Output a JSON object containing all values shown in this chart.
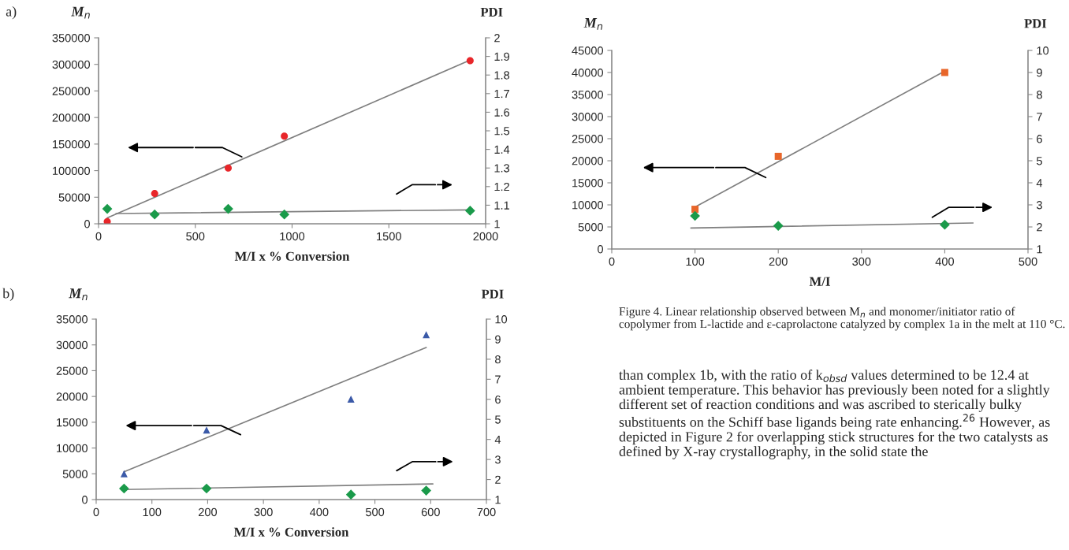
{
  "chart_data": [
    {
      "type": "scatter",
      "annotations": [
        "a)"
      ],
      "xlabel": "M/I x % Conversion",
      "ylabel": "M$_{n}$",
      "y2label": "PDI",
      "xlim": [
        0,
        2000
      ],
      "xticks": [
        0,
        500,
        1000,
        1500,
        2000
      ],
      "ylim": [
        0,
        350000
      ],
      "yticks": [
        0,
        50000,
        100000,
        150000,
        200000,
        250000,
        300000,
        350000
      ],
      "y2lim": [
        1,
        2
      ],
      "y2ticks": [
        1,
        {
          "value": 1.1,
          "label": "1.1"
        },
        {
          "value": 1.2,
          "label": "1.2"
        },
        {
          "value": 1.3,
          "label": "1.3"
        },
        {
          "value": 1.4,
          "label": "1.4"
        },
        {
          "value": 1.5,
          "label": "1.5"
        },
        {
          "value": 1.6,
          "label": "1.6"
        },
        {
          "value": 1.7,
          "label": "1.7"
        },
        {
          "value": 1.8,
          "label": "1.8"
        },
        {
          "value": 1.9,
          "label": "1.9"
        },
        2
      ],
      "grid": false,
      "series": [
        {
          "type": "scatter",
          "marker": "circle",
          "color": "#e8262a",
          "x": [
            45,
            290,
            670,
            960,
            1920
          ],
          "values": [
            4000,
            57000,
            105000,
            165000,
            307000
          ]
        },
        {
          "type": "scatter",
          "marker": "diamond",
          "axis": "y2",
          "color": "#1a9a4a",
          "x": [
            45,
            290,
            670,
            960,
            1920
          ],
          "values": [
            1.08,
            1.05,
            1.08,
            1.05,
            1.07
          ]
        },
        {
          "type": "line",
          "color": "#7f7f7f",
          "x": [
            45,
            1920
          ],
          "values": [
            11000,
            308000
          ]
        },
        {
          "type": "line",
          "axis": "y2",
          "color": "#7f7f7f",
          "x": [
            90,
            1920
          ],
          "values": [
            1.055,
            1.075
          ]
        }
      ]
    },
    {
      "type": "scatter",
      "annotations": [
        "b)"
      ],
      "xlabel": "M/I x % Conversion",
      "ylabel": "M$_{n}$",
      "y2label": "PDI",
      "xlim": [
        0,
        700
      ],
      "xticks": [
        0,
        100,
        200,
        300,
        400,
        500,
        600,
        700
      ],
      "ylim": [
        0,
        35000
      ],
      "yticks": [
        0,
        5000,
        10000,
        15000,
        20000,
        25000,
        30000,
        35000
      ],
      "y2lim": [
        1,
        10
      ],
      "y2ticks": [
        1,
        2,
        3,
        4,
        5,
        6,
        7,
        8,
        9,
        10
      ],
      "grid": false,
      "series": [
        {
          "type": "scatter",
          "marker": "triangle",
          "color": "#3b5aa8",
          "x": [
            50,
            198,
            457,
            592
          ],
          "values": [
            5000,
            13500,
            19500,
            32000
          ]
        },
        {
          "type": "scatter",
          "marker": "diamond",
          "axis": "y2",
          "color": "#1a9a4a",
          "x": [
            50,
            198,
            457,
            592
          ],
          "values": [
            1.55,
            1.55,
            1.25,
            1.45
          ]
        },
        {
          "type": "line",
          "color": "#7f7f7f",
          "x": [
            50,
            592
          ],
          "values": [
            5400,
            29500
          ]
        },
        {
          "type": "line",
          "axis": "y2",
          "color": "#7f7f7f",
          "x": [
            50,
            604
          ],
          "values": [
            1.5,
            1.78
          ]
        }
      ]
    },
    {
      "type": "scatter",
      "xlabel": "M/I",
      "ylabel": "M$_{n}$",
      "y2label": "PDI",
      "xlim": [
        0,
        500
      ],
      "xticks": [
        0,
        100,
        200,
        300,
        400,
        500
      ],
      "ylim": [
        0,
        45000
      ],
      "yticks": [
        0,
        5000,
        10000,
        15000,
        20000,
        25000,
        30000,
        35000,
        40000,
        45000
      ],
      "y2lim": [
        1,
        10
      ],
      "y2ticks": [
        1,
        2,
        3,
        4,
        5,
        6,
        7,
        8,
        9,
        10
      ],
      "grid": false,
      "series": [
        {
          "type": "scatter",
          "marker": "square",
          "color": "#e8662a",
          "x": [
            100,
            200,
            400
          ],
          "values": [
            9000,
            21000,
            40000
          ]
        },
        {
          "type": "scatter",
          "marker": "diamond",
          "axis": "y2",
          "color": "#1a9a4a",
          "x": [
            100,
            200,
            400
          ],
          "values": [
            2.5,
            2.05,
            2.1
          ]
        },
        {
          "type": "line",
          "color": "#7f7f7f",
          "x": [
            100,
            400
          ],
          "values": [
            9500,
            40300
          ]
        },
        {
          "type": "line",
          "axis": "y2",
          "color": "#7f7f7f",
          "x": [
            95,
            434
          ],
          "values": [
            1.95,
            2.18
          ]
        }
      ]
    },
    {
      "type": "other",
      "annotations": [
        "Figure 4. Linear relationship observed between M$_{n}$ and monomer/initiator ratio of copolymer from L-lactide and ε-caprolactone catalyzed by complex 1a in the melt at 110 °C.",
        "than complex 1b, with the ratio of k$_{obsd}$ values determined to be 12.4 at ambient temperature. This behavior has previously been noted for a slightly different set of reaction conditions and was ascribed to sterically bulky substituents on the Schiff base ligands being rate enhancing.$^{26}$ However, as depicted in Figure 2 for overlapping stick structures for the two catalysts as defined by X-ray crystallography, in the solid state the"
      ]
    }
  ]
}
